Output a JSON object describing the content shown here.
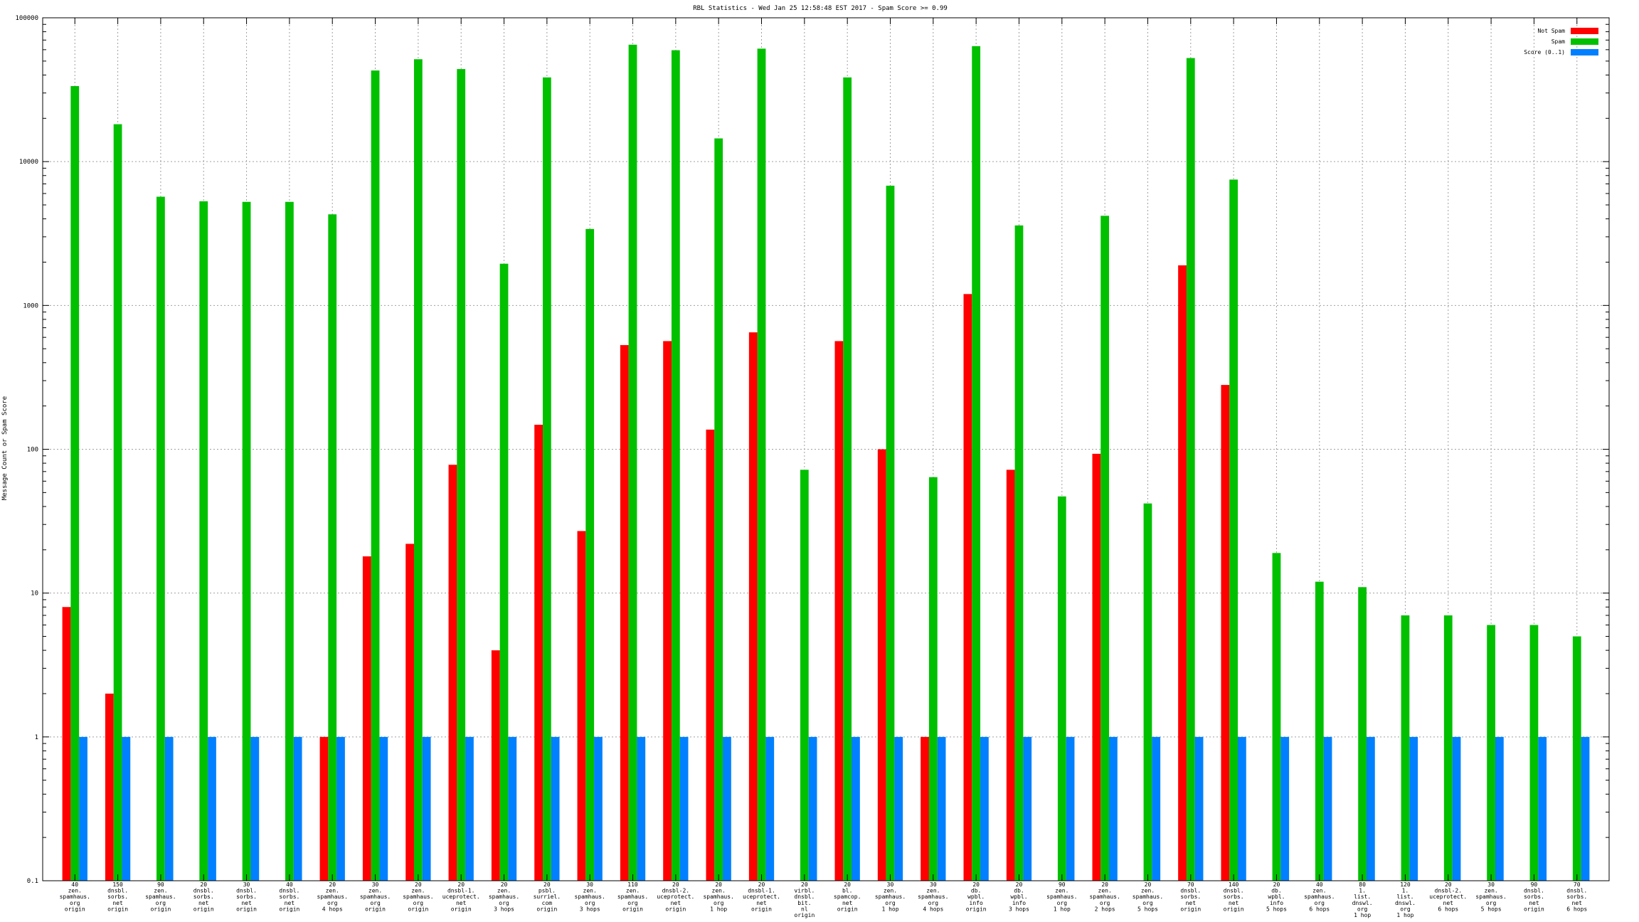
{
  "chart_data": {
    "type": "bar",
    "title": "RBL Statistics - Wed Jan 25 12:58:48 EST 2017 - Spam Score >= 0.99",
    "ylabel": "Message Count or Spam Score",
    "xlabel": "",
    "yscale": "log",
    "ylim": [
      0.1,
      100000
    ],
    "yticks": [
      "0.1",
      "1",
      "10",
      "100",
      "1000",
      "10000",
      "100000"
    ],
    "grid": true,
    "legend_position": "top-right",
    "categories": [
      "40\nzen.\nspamhaus.\norg\norigin",
      "150\ndnsbl.\nsorbs.\nnet\norigin",
      "90\nzen.\nspamhaus.\norg\norigin",
      "20\ndnsbl.\nsorbs.\nnet\norigin",
      "30\ndnsbl.\nsorbs.\nnet\norigin",
      "40\ndnsbl.\nsorbs.\nnet\norigin",
      "20\nzen.\nspamhaus.\norg\n4 hops",
      "30\nzen.\nspamhaus.\norg\norigin",
      "20\nzen.\nspamhaus.\norg\norigin",
      "20\ndnsbl-1.\nuceprotect.\nnet\norigin",
      "20\nzen.\nspamhaus.\norg\n3 hops",
      "20\npsbl.\nsurriel.\ncom\norigin",
      "30\nzen.\nspamhaus.\norg\n3 hops",
      "110\nzen.\nspamhaus.\norg\norigin",
      "20\ndnsbl-2.\nuceprotect.\nnet\norigin",
      "20\nzen.\nspamhaus.\norg\n1 hop",
      "20\ndnsbl-1.\nuceprotect.\nnet\norigin",
      "20\nvirbl.\ndnsbl.\nbit.\nnl\norigin",
      "20\nbl.\nspamcop.\nnet\norigin",
      "30\nzen.\nspamhaus.\norg\n1 hop",
      "30\nzen.\nspamhaus.\norg\n4 hops",
      "20\ndb.\nwpbl.\ninfo\norigin",
      "20\ndb.\nwpbl.\ninfo\n3 hops",
      "90\nzen.\nspamhaus.\norg\n1 hop",
      "20\nzen.\nspamhaus.\norg\n2 hops",
      "20\nzen.\nspamhaus.\norg\n5 hops",
      "70\ndnsbl.\nsorbs.\nnet\norigin",
      "140\ndnsbl.\nsorbs.\nnet\norigin",
      "20\ndb.\nwpbl.\ninfo\n5 hops",
      "40\nzen.\nspamhaus.\norg\n6 hops",
      "80\n1.\nlist.\ndnswl.\norg\n1 hop",
      "120\n1.\nlist.\ndnswl.\norg\n1 hop",
      "20\ndnsbl-2.\nuceprotect.\nnet\n6 hops",
      "30\nzen.\nspamhaus.\norg\n5 hops",
      "90\ndnsbl.\nsorbs.\nnet\norigin",
      "70\ndnsbl.\nsorbs.\nnet\n6 hops"
    ],
    "series": [
      {
        "name": "Not Spam",
        "color": "#ff0000",
        "values": [
          8,
          2,
          0,
          0,
          0,
          0,
          1,
          18,
          22,
          78,
          4,
          148,
          27,
          530,
          565,
          137,
          650,
          0,
          565,
          100,
          1,
          1200,
          72,
          0,
          93,
          0,
          1900,
          280,
          0,
          0,
          0,
          0,
          0,
          0,
          0,
          0
        ]
      },
      {
        "name": "Spam",
        "color": "#00c000",
        "values": [
          33500,
          18200,
          5700,
          5300,
          5250,
          5250,
          4300,
          43000,
          51500,
          44000,
          1950,
          38500,
          3400,
          65000,
          59500,
          14500,
          61000,
          72,
          38500,
          6800,
          64,
          63500,
          3600,
          47,
          4200,
          42,
          52500,
          7500,
          19,
          12,
          11,
          7,
          7,
          6,
          6,
          5
        ]
      },
      {
        "name": "Score (0..1)",
        "color": "#0080ff",
        "values": [
          1,
          1,
          1,
          1,
          1,
          1,
          1,
          1,
          1,
          1,
          1,
          1,
          1,
          1,
          1,
          1,
          1,
          1,
          1,
          1,
          1,
          1,
          1,
          1,
          1,
          1,
          1,
          1,
          1,
          1,
          1,
          1,
          1,
          1,
          1,
          1
        ]
      }
    ]
  }
}
